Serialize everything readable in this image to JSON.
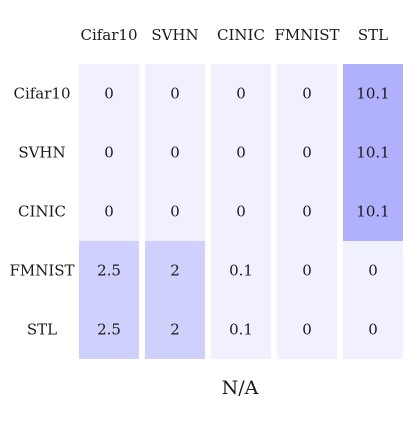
{
  "chart_data": {
    "type": "heatmap",
    "columns": [
      "Cifar10",
      "SVHN",
      "CINIC",
      "FMNIST",
      "STL"
    ],
    "rows": [
      "Cifar10",
      "SVHN",
      "CINIC",
      "FMNIST",
      "STL"
    ],
    "values": [
      [
        0,
        0,
        0,
        0,
        10.1
      ],
      [
        0,
        0,
        0,
        0,
        10.1
      ],
      [
        0,
        0,
        0,
        0,
        10.1
      ],
      [
        2.5,
        2,
        0.1,
        0,
        0
      ],
      [
        2.5,
        2,
        0.1,
        0,
        0
      ]
    ],
    "value_labels": [
      [
        "0",
        "0",
        "0",
        "0",
        "10.1"
      ],
      [
        "0",
        "0",
        "0",
        "0",
        "10.1"
      ],
      [
        "0",
        "0",
        "0",
        "0",
        "10.1"
      ],
      [
        "2.5",
        "2",
        "0.1",
        "0",
        "0"
      ],
      [
        "2.5",
        "2",
        "0.1",
        "0",
        "0"
      ]
    ],
    "xlabel": "N/A",
    "column_labels_position": "top",
    "colors": {
      "blocks": [
        "#f0f0fe",
        "#d0d0fd",
        "#b0b0fd"
      ],
      "block_edge": "#ffffff"
    }
  }
}
